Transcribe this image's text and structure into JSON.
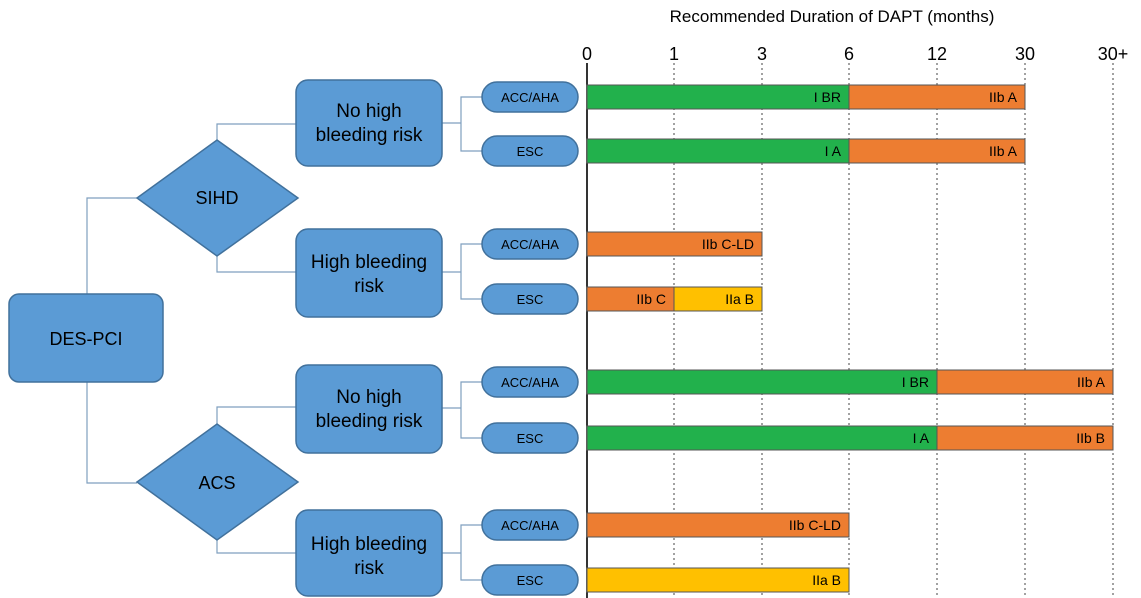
{
  "title": "Recommended Duration of DAPT (months)",
  "axis": {
    "ticks": [
      "0",
      "1",
      "3",
      "6",
      "12",
      "30",
      "30+"
    ],
    "tick_months": [
      0,
      1,
      3,
      6,
      12,
      30,
      null
    ]
  },
  "colors": {
    "node_fill": "#5b9bd5",
    "node_stroke": "#41719c",
    "connector": "#7f9fbf",
    "green": "#22b14c",
    "orange": "#ed7d31",
    "yellow": "#ffc000",
    "bar_stroke": "#555555"
  },
  "tree": {
    "root": "DES-PCI",
    "branches": [
      {
        "label": "SIHD",
        "groups": [
          {
            "label_lines": [
              "No high",
              "bleeding risk"
            ],
            "guidelines": [
              "ACC/AHA",
              "ESC"
            ]
          },
          {
            "label_lines": [
              "High bleeding",
              "risk"
            ],
            "guidelines": [
              "ACC/AHA",
              "ESC"
            ]
          }
        ]
      },
      {
        "label": "ACS",
        "groups": [
          {
            "label_lines": [
              "No high",
              "bleeding risk"
            ],
            "guidelines": [
              "ACC/AHA",
              "ESC"
            ]
          },
          {
            "label_lines": [
              "High bleeding",
              "risk"
            ],
            "guidelines": [
              "ACC/AHA",
              "ESC"
            ]
          }
        ]
      }
    ]
  },
  "chart_data": {
    "type": "bar",
    "orientation": "horizontal-stacked",
    "title": "Recommended Duration of DAPT (months)",
    "x_unit": "months",
    "x_ticks": [
      "0",
      "1",
      "3",
      "6",
      "12",
      "30",
      "30+"
    ],
    "rows": [
      {
        "population": "SIHD",
        "bleeding_risk": "No high bleeding risk",
        "guideline": "ACC/AHA",
        "segments": [
          {
            "from": 0,
            "to": 6,
            "label": "I BR",
            "color": "green"
          },
          {
            "from": 6,
            "to": 30,
            "label": "IIb A",
            "color": "orange"
          }
        ]
      },
      {
        "population": "SIHD",
        "bleeding_risk": "No high bleeding risk",
        "guideline": "ESC",
        "segments": [
          {
            "from": 0,
            "to": 6,
            "label": "I A",
            "color": "green"
          },
          {
            "from": 6,
            "to": 30,
            "label": "IIb A",
            "color": "orange"
          }
        ]
      },
      {
        "population": "SIHD",
        "bleeding_risk": "High bleeding risk",
        "guideline": "ACC/AHA",
        "segments": [
          {
            "from": 0,
            "to": 3,
            "label": "IIb C-LD",
            "color": "orange"
          }
        ]
      },
      {
        "population": "SIHD",
        "bleeding_risk": "High bleeding risk",
        "guideline": "ESC",
        "segments": [
          {
            "from": 0,
            "to": 1,
            "label": "IIb C",
            "color": "orange"
          },
          {
            "from": 1,
            "to": 3,
            "label": "IIa B",
            "color": "yellow"
          }
        ]
      },
      {
        "population": "ACS",
        "bleeding_risk": "No high bleeding risk",
        "guideline": "ACC/AHA",
        "segments": [
          {
            "from": 0,
            "to": 12,
            "label": "I BR",
            "color": "green"
          },
          {
            "from": 12,
            "to": "30+",
            "label": "IIb A",
            "color": "orange"
          }
        ]
      },
      {
        "population": "ACS",
        "bleeding_risk": "No high bleeding risk",
        "guideline": "ESC",
        "segments": [
          {
            "from": 0,
            "to": 12,
            "label": "I A",
            "color": "green"
          },
          {
            "from": 12,
            "to": "30+",
            "label": "IIb B",
            "color": "orange"
          }
        ]
      },
      {
        "population": "ACS",
        "bleeding_risk": "High bleeding risk",
        "guideline": "ACC/AHA",
        "segments": [
          {
            "from": 0,
            "to": 6,
            "label": "IIb C-LD",
            "color": "orange"
          }
        ]
      },
      {
        "population": "ACS",
        "bleeding_risk": "High bleeding risk",
        "guideline": "ESC",
        "segments": [
          {
            "from": 0,
            "to": 6,
            "label": "IIa B",
            "color": "yellow"
          }
        ]
      }
    ]
  }
}
